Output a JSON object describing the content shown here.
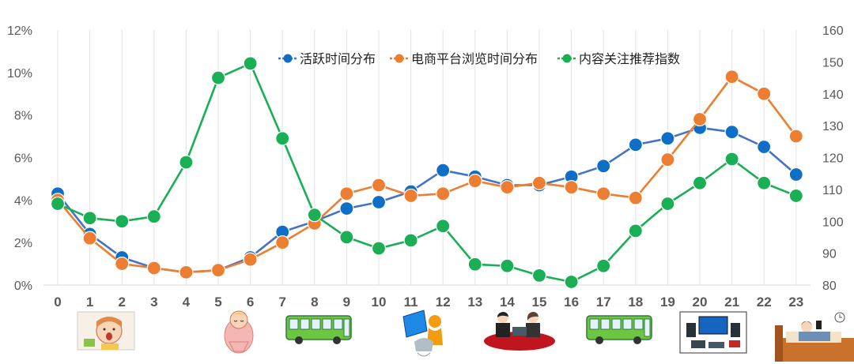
{
  "chart_data": {
    "type": "line",
    "x": [
      0,
      1,
      2,
      3,
      4,
      5,
      6,
      7,
      8,
      9,
      10,
      11,
      12,
      13,
      14,
      15,
      16,
      17,
      18,
      19,
      20,
      21,
      22,
      23
    ],
    "left_axis": {
      "min": 0,
      "max": 12,
      "ticks": [
        "0%",
        "2%",
        "4%",
        "6%",
        "8%",
        "10%",
        "12%"
      ]
    },
    "right_axis": {
      "min": 80,
      "max": 160,
      "ticks": [
        "80",
        "90",
        "100",
        "110",
        "120",
        "130",
        "140",
        "150",
        "160"
      ]
    },
    "grid": "vertical",
    "legend_position": "top-right",
    "series": [
      {
        "name": "活跃时间分布",
        "axis": "left",
        "color": "#4472C4",
        "marker_color": "#0F6FC6",
        "values": [
          4.3,
          2.4,
          1.3,
          0.8,
          0.6,
          0.7,
          1.3,
          2.5,
          3.0,
          3.6,
          3.9,
          4.4,
          5.4,
          5.1,
          4.7,
          4.7,
          5.1,
          5.6,
          6.6,
          6.9,
          7.4,
          7.2,
          6.5,
          5.2
        ]
      },
      {
        "name": "电商平台浏览时间分布",
        "axis": "left",
        "color": "#ED7D31",
        "marker_color": "#ED7D31",
        "values": [
          4.0,
          2.2,
          1.0,
          0.8,
          0.6,
          0.7,
          1.2,
          2.0,
          2.9,
          4.3,
          4.7,
          4.2,
          4.3,
          4.9,
          4.6,
          4.8,
          4.6,
          4.3,
          4.1,
          5.9,
          7.8,
          9.8,
          9.0,
          7.0
        ]
      },
      {
        "name": "内容关注推荐指数",
        "axis": "right",
        "color": "#1AAF54",
        "marker_color": "#1AAF54",
        "values": [
          105.5,
          101,
          100,
          101.5,
          118.5,
          145,
          149.5,
          126,
          102,
          95,
          91.5,
          94,
          98.5,
          86.5,
          86,
          83,
          81,
          86,
          97,
          105.5,
          112,
          119.5,
          112,
          108
        ]
      }
    ]
  },
  "pictures": [
    {
      "hour": 1,
      "icon": "yawning-person-icon"
    },
    {
      "hour": 6,
      "icon": "sleeping-person-icon"
    },
    {
      "hour": 8,
      "icon": "bus-icon"
    },
    {
      "hour": 12,
      "icon": "computer-worker-icon"
    },
    {
      "hour": 14,
      "icon": "meeting-people-icon"
    },
    {
      "hour": 17,
      "icon": "bus-icon"
    },
    {
      "hour": 20,
      "icon": "devices-icon"
    },
    {
      "hour": 23,
      "icon": "bed-phone-icon"
    }
  ]
}
